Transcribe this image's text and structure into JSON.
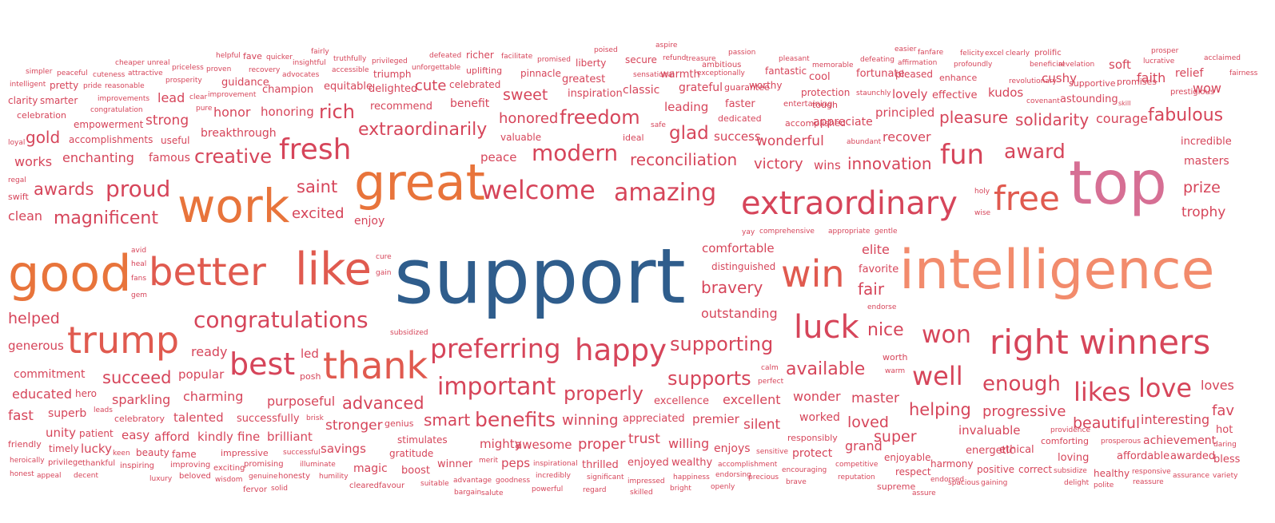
{
  "colors": {
    "primary": "#2f5d8c",
    "orange": "#e8743b",
    "salmon": "#f28b6c",
    "red": "#d6455a",
    "coral": "#e05a4f",
    "pink": "#d66f94",
    "rose": "#c94a66"
  },
  "words": [
    {
      "text": "support"
    },
    {
      "text": "intelligence"
    },
    {
      "text": "good"
    },
    {
      "text": "top"
    },
    {
      "text": "great"
    },
    {
      "text": "work"
    },
    {
      "text": "better"
    },
    {
      "text": "like"
    },
    {
      "text": "win"
    },
    {
      "text": "trump"
    },
    {
      "text": "thank"
    },
    {
      "text": "free"
    },
    {
      "text": "extraordinary"
    },
    {
      "text": "winners"
    },
    {
      "text": "right"
    },
    {
      "text": "luck"
    },
    {
      "text": "best"
    },
    {
      "text": "happy"
    },
    {
      "text": "preferring"
    },
    {
      "text": "fresh"
    },
    {
      "text": "welcome"
    },
    {
      "text": "amazing"
    },
    {
      "text": "congratulations"
    },
    {
      "text": "important"
    },
    {
      "text": "fun"
    },
    {
      "text": "won"
    },
    {
      "text": "likes"
    },
    {
      "text": "love"
    },
    {
      "text": "well"
    },
    {
      "text": "benefits"
    },
    {
      "text": "proud"
    },
    {
      "text": "modern"
    },
    {
      "text": "award"
    },
    {
      "text": "extraordinarily"
    },
    {
      "text": "supporting"
    },
    {
      "text": "enough"
    },
    {
      "text": "properly"
    },
    {
      "text": "freedom"
    },
    {
      "text": "available"
    },
    {
      "text": "fabulous"
    },
    {
      "text": "rich"
    },
    {
      "text": "creative"
    },
    {
      "text": "supports"
    },
    {
      "text": "advanced"
    },
    {
      "text": "nice"
    },
    {
      "text": "helping"
    },
    {
      "text": "reconciliation"
    },
    {
      "text": "magnificent"
    },
    {
      "text": "awards"
    },
    {
      "text": "saint"
    },
    {
      "text": "pleasure"
    },
    {
      "text": "solidarity"
    },
    {
      "text": "glad"
    },
    {
      "text": "beautiful"
    },
    {
      "text": "innovation"
    },
    {
      "text": "sweet"
    },
    {
      "text": "succeed"
    },
    {
      "text": "smart"
    },
    {
      "text": "progressive"
    },
    {
      "text": "winning"
    },
    {
      "text": "prize"
    },
    {
      "text": "trophy"
    },
    {
      "text": "interesting"
    },
    {
      "text": "gold"
    },
    {
      "text": "helped"
    },
    {
      "text": "bravery"
    },
    {
      "text": "victory"
    },
    {
      "text": "excited"
    },
    {
      "text": "honored"
    },
    {
      "text": "wonderful"
    },
    {
      "text": "fair"
    },
    {
      "text": "master"
    },
    {
      "text": "stronger"
    },
    {
      "text": "proper"
    },
    {
      "text": "loved"
    },
    {
      "text": "trust"
    },
    {
      "text": "super"
    },
    {
      "text": "sparkling"
    },
    {
      "text": "charming"
    },
    {
      "text": "purposeful"
    },
    {
      "text": "excellent"
    },
    {
      "text": "wonder"
    },
    {
      "text": "silent"
    },
    {
      "text": "comfortable"
    },
    {
      "text": "elite"
    },
    {
      "text": "outstanding"
    },
    {
      "text": "strong"
    },
    {
      "text": "cute"
    },
    {
      "text": "fast"
    },
    {
      "text": "fav"
    },
    {
      "text": "ready"
    },
    {
      "text": "popular"
    },
    {
      "text": "talented"
    },
    {
      "text": "successfully"
    },
    {
      "text": "brilliant"
    },
    {
      "text": "savings"
    },
    {
      "text": "mighty"
    },
    {
      "text": "awesome"
    },
    {
      "text": "peps"
    },
    {
      "text": "enjoyed"
    },
    {
      "text": "wealthy"
    },
    {
      "text": "enjoys"
    },
    {
      "text": "protect"
    },
    {
      "text": "grand"
    },
    {
      "text": "invaluable"
    },
    {
      "text": "energetic"
    },
    {
      "text": "ethical"
    },
    {
      "text": "harmony"
    },
    {
      "text": "loving"
    },
    {
      "text": "affordable"
    },
    {
      "text": "awarded"
    },
    {
      "text": "bless"
    },
    {
      "text": "hot"
    },
    {
      "text": "loves"
    },
    {
      "text": "achievement"
    },
    {
      "text": "comforting"
    },
    {
      "text": "incredible"
    },
    {
      "text": "masters"
    },
    {
      "text": "wow"
    },
    {
      "text": "courage"
    },
    {
      "text": "faith"
    },
    {
      "text": "relief"
    },
    {
      "text": "soft"
    },
    {
      "text": "kudos"
    },
    {
      "text": "cushy"
    },
    {
      "text": "effective"
    },
    {
      "text": "lovely"
    },
    {
      "text": "principled"
    },
    {
      "text": "recover"
    },
    {
      "text": "appreciate"
    },
    {
      "text": "success"
    },
    {
      "text": "leading"
    },
    {
      "text": "grateful"
    },
    {
      "text": "classic"
    },
    {
      "text": "benefit"
    },
    {
      "text": "recommend"
    },
    {
      "text": "delighted"
    },
    {
      "text": "honoring"
    },
    {
      "text": "honor"
    },
    {
      "text": "lead"
    },
    {
      "text": "champion"
    },
    {
      "text": "breakthrough"
    },
    {
      "text": "enchanting"
    },
    {
      "text": "famous"
    },
    {
      "text": "works"
    },
    {
      "text": "clean"
    },
    {
      "text": "peace"
    },
    {
      "text": "safe"
    },
    {
      "text": "ideal"
    },
    {
      "text": "valuable"
    },
    {
      "text": "faster"
    },
    {
      "text": "dedicated"
    },
    {
      "text": "accomplished"
    },
    {
      "text": "tough"
    },
    {
      "text": "entertaining"
    },
    {
      "text": "worthy"
    },
    {
      "text": "guarantee"
    },
    {
      "text": "cool"
    },
    {
      "text": "fortunate"
    },
    {
      "text": "pleased"
    },
    {
      "text": "enhance"
    },
    {
      "text": "promises"
    },
    {
      "text": "supportive"
    },
    {
      "text": "prestigious"
    },
    {
      "text": "fairness"
    },
    {
      "text": "acclaimed"
    },
    {
      "text": "lucrative"
    },
    {
      "text": "prosper"
    },
    {
      "text": "revolutionary"
    },
    {
      "text": "revelation"
    },
    {
      "text": "beneficial"
    },
    {
      "text": "profoundly"
    },
    {
      "text": "affirmation"
    },
    {
      "text": "defeating"
    },
    {
      "text": "memorable"
    },
    {
      "text": "pleasant"
    },
    {
      "text": "fantastic"
    },
    {
      "text": "protection"
    },
    {
      "text": "staunchly"
    },
    {
      "text": "covenant"
    },
    {
      "text": "astounding"
    },
    {
      "text": "skill"
    },
    {
      "text": "easier"
    },
    {
      "text": "fanfare"
    },
    {
      "text": "felicity"
    },
    {
      "text": "excel"
    },
    {
      "text": "clearly"
    },
    {
      "text": "prolific"
    },
    {
      "text": "passion"
    },
    {
      "text": "ambitious"
    },
    {
      "text": "exceptionally"
    },
    {
      "text": "warmth"
    },
    {
      "text": "sensational"
    },
    {
      "text": "secure"
    },
    {
      "text": "refund"
    },
    {
      "text": "treasure"
    },
    {
      "text": "aspire"
    },
    {
      "text": "poised"
    },
    {
      "text": "liberty"
    },
    {
      "text": "greatest"
    },
    {
      "text": "inspiration"
    },
    {
      "text": "pinnacle"
    },
    {
      "text": "promised"
    },
    {
      "text": "facilitate"
    },
    {
      "text": "richer"
    },
    {
      "text": "defeated"
    },
    {
      "text": "celebrated"
    },
    {
      "text": "uplifting"
    },
    {
      "text": "unforgettable"
    },
    {
      "text": "triumph"
    },
    {
      "text": "privileged"
    },
    {
      "text": "truthfully"
    },
    {
      "text": "fairly"
    },
    {
      "text": "accessible"
    },
    {
      "text": "insightful"
    },
    {
      "text": "advocates"
    },
    {
      "text": "equitable"
    },
    {
      "text": "quicker"
    },
    {
      "text": "recovery"
    },
    {
      "text": "fave"
    },
    {
      "text": "helpful"
    },
    {
      "text": "guidance"
    },
    {
      "text": "proven"
    },
    {
      "text": "improvement"
    },
    {
      "text": "clear"
    },
    {
      "text": "priceless"
    },
    {
      "text": "prosperity"
    },
    {
      "text": "unreal"
    },
    {
      "text": "cheaper"
    },
    {
      "text": "attractive"
    },
    {
      "text": "reasonable"
    },
    {
      "text": "improvements"
    },
    {
      "text": "congratulation"
    },
    {
      "text": "pure"
    },
    {
      "text": "cuteness"
    },
    {
      "text": "pride"
    },
    {
      "text": "peaceful"
    },
    {
      "text": "simpler"
    },
    {
      "text": "intelligent"
    },
    {
      "text": "pretty"
    },
    {
      "text": "clarity"
    },
    {
      "text": "smarter"
    },
    {
      "text": "celebration"
    },
    {
      "text": "empowerment"
    },
    {
      "text": "accomplishments"
    },
    {
      "text": "useful"
    },
    {
      "text": "loyal"
    },
    {
      "text": "regal"
    },
    {
      "text": "swift"
    },
    {
      "text": "holy"
    },
    {
      "text": "wise"
    },
    {
      "text": "wins"
    },
    {
      "text": "abundant"
    },
    {
      "text": "enjoy"
    },
    {
      "text": "yay"
    },
    {
      "text": "comprehensive"
    },
    {
      "text": "appropriate"
    },
    {
      "text": "gentle"
    },
    {
      "text": "distinguished"
    },
    {
      "text": "favorite"
    },
    {
      "text": "endorse"
    },
    {
      "text": "worth"
    },
    {
      "text": "warm"
    },
    {
      "text": "calm"
    },
    {
      "text": "perfect"
    },
    {
      "text": "excellence"
    },
    {
      "text": "premier"
    },
    {
      "text": "appreciated"
    },
    {
      "text": "worked"
    },
    {
      "text": "responsibly"
    },
    {
      "text": "willing"
    },
    {
      "text": "avid"
    },
    {
      "text": "heal"
    },
    {
      "text": "fans"
    },
    {
      "text": "gem"
    },
    {
      "text": "cure"
    },
    {
      "text": "gain"
    },
    {
      "text": "subsidized"
    },
    {
      "text": "generous"
    },
    {
      "text": "led"
    },
    {
      "text": "posh"
    },
    {
      "text": "commitment"
    },
    {
      "text": "educated"
    },
    {
      "text": "hero"
    },
    {
      "text": "superb"
    },
    {
      "text": "leads"
    },
    {
      "text": "celebratory"
    },
    {
      "text": "brisk"
    },
    {
      "text": "genius"
    },
    {
      "text": "unity"
    },
    {
      "text": "patient"
    },
    {
      "text": "easy"
    },
    {
      "text": "afford"
    },
    {
      "text": "kindly"
    },
    {
      "text": "fine"
    },
    {
      "text": "friendly"
    },
    {
      "text": "timely"
    },
    {
      "text": "lucky"
    },
    {
      "text": "keen"
    },
    {
      "text": "beauty"
    },
    {
      "text": "fame"
    },
    {
      "text": "impressive"
    },
    {
      "text": "successful"
    },
    {
      "text": "stimulates"
    },
    {
      "text": "gratitude"
    },
    {
      "text": "boost"
    },
    {
      "text": "magic"
    },
    {
      "text": "heroically"
    },
    {
      "text": "privilege"
    },
    {
      "text": "thankful"
    },
    {
      "text": "inspiring"
    },
    {
      "text": "improving"
    },
    {
      "text": "exciting"
    },
    {
      "text": "promising"
    },
    {
      "text": "illuminate"
    },
    {
      "text": "honest"
    },
    {
      "text": "appeal"
    },
    {
      "text": "decent"
    },
    {
      "text": "luxury"
    },
    {
      "text": "beloved"
    },
    {
      "text": "wisdom"
    },
    {
      "text": "genuine"
    },
    {
      "text": "honesty"
    },
    {
      "text": "humility"
    },
    {
      "text": "fervor"
    },
    {
      "text": "solid"
    },
    {
      "text": "cleared"
    },
    {
      "text": "favour"
    },
    {
      "text": "suitable"
    },
    {
      "text": "winner"
    },
    {
      "text": "merit"
    },
    {
      "text": "advantage"
    },
    {
      "text": "goodness"
    },
    {
      "text": "bargain"
    },
    {
      "text": "salute"
    },
    {
      "text": "inspirational"
    },
    {
      "text": "incredibly"
    },
    {
      "text": "powerful"
    },
    {
      "text": "thrilled"
    },
    {
      "text": "significant"
    },
    {
      "text": "regard"
    },
    {
      "text": "impressed"
    },
    {
      "text": "skilled"
    },
    {
      "text": "happiness"
    },
    {
      "text": "bright"
    },
    {
      "text": "endorsing"
    },
    {
      "text": "openly"
    },
    {
      "text": "precious"
    },
    {
      "text": "accomplishment"
    },
    {
      "text": "sensitive"
    },
    {
      "text": "encouraging"
    },
    {
      "text": "brave"
    },
    {
      "text": "competitive"
    },
    {
      "text": "reputation"
    },
    {
      "text": "enjoyable"
    },
    {
      "text": "respect"
    },
    {
      "text": "supreme"
    },
    {
      "text": "endorsed"
    },
    {
      "text": "assure"
    },
    {
      "text": "spacious"
    },
    {
      "text": "gaining"
    },
    {
      "text": "positive"
    },
    {
      "text": "correct"
    },
    {
      "text": "providence"
    },
    {
      "text": "subsidize"
    },
    {
      "text": "delight"
    },
    {
      "text": "prosperous"
    },
    {
      "text": "responsive"
    },
    {
      "text": "reassure"
    },
    {
      "text": "healthy"
    },
    {
      "text": "polite"
    },
    {
      "text": "assurance"
    },
    {
      "text": "variety"
    },
    {
      "text": "daring"
    }
  ]
}
